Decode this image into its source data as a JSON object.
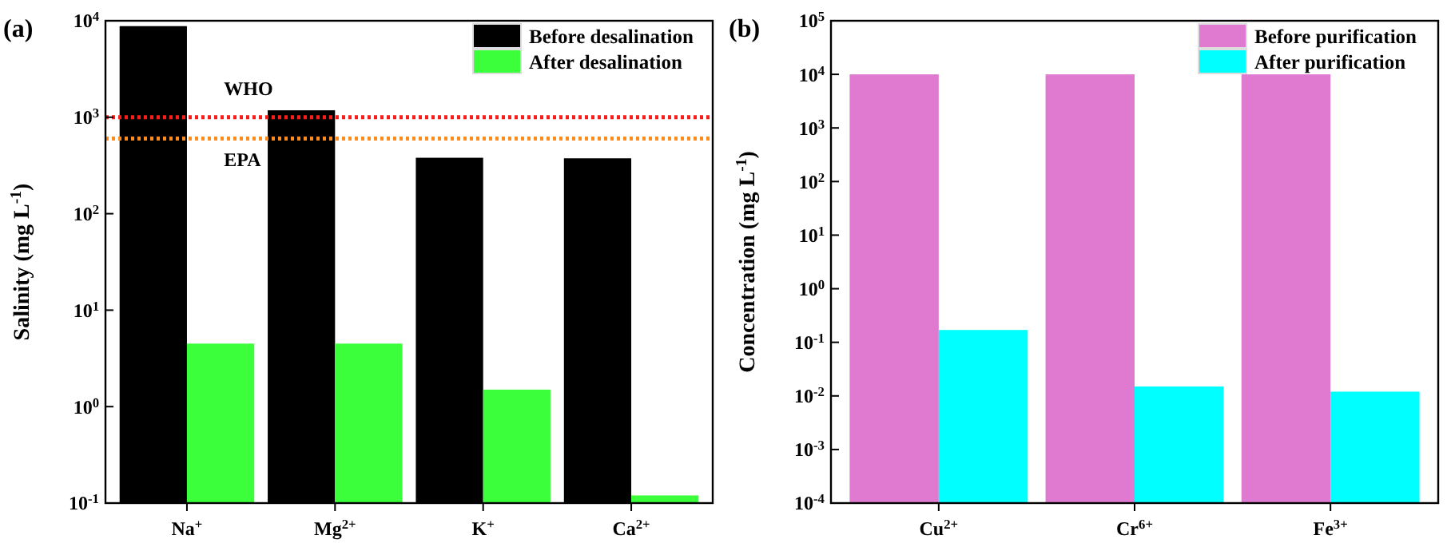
{
  "chart_data": [
    {
      "type": "bar",
      "annotations": [
        "(a)"
      ],
      "ylabel": "Salinity (mg L$^{-1}$)",
      "categories": [
        "Na$^{+}$",
        "Mg$^{2+}$",
        "K$^{+}$",
        "Ca$^{2+}$"
      ],
      "log": true,
      "ylim": [
        0.1,
        10000
      ],
      "yticks": [
        {
          "value": 0.1,
          "label": "10$^{-1}$"
        },
        {
          "value": 1,
          "label": "10$^{0}$"
        },
        {
          "value": 10,
          "label": "10$^{1}$"
        },
        {
          "value": 100,
          "label": "10$^{2}$"
        },
        {
          "value": 1000,
          "label": "10$^{3}$"
        },
        {
          "value": 10000,
          "label": "10$^{4}$"
        }
      ],
      "legend": "top right",
      "series": [
        {
          "name": "Before desalination",
          "color": "#000000",
          "values": [
            8800,
            1180,
            380,
            375
          ]
        },
        {
          "name": "After desalination",
          "color": "#3cff3c",
          "values": [
            4.5,
            4.5,
            1.5,
            0.12
          ]
        }
      ],
      "ref_lines": [
        {
          "axis": "y",
          "value": 1000,
          "label": "WHO",
          "color": "#ff1a1a",
          "line_style": "dotted"
        },
        {
          "axis": "y",
          "value": 600,
          "label": "EPA",
          "color": "#ff8c1a",
          "line_style": "dotted"
        }
      ]
    },
    {
      "type": "bar",
      "annotations": [
        "(b)"
      ],
      "ylabel": "Concentration (mg L$^{-1}$)",
      "categories": [
        "Cu$^{2+}$",
        "Cr$^{6+}$",
        "Fe$^{3+}$"
      ],
      "log": true,
      "ylim": [
        0.0001,
        100000
      ],
      "yticks": [
        {
          "value": 0.0001,
          "label": "10$^{-4}$"
        },
        {
          "value": 0.001,
          "label": "10$^{-3}$"
        },
        {
          "value": 0.01,
          "label": "10$^{-2}$"
        },
        {
          "value": 0.1,
          "label": "10$^{-1}$"
        },
        {
          "value": 1,
          "label": "10$^{0}$"
        },
        {
          "value": 10,
          "label": "10$^{1}$"
        },
        {
          "value": 100,
          "label": "10$^{2}$"
        },
        {
          "value": 1000,
          "label": "10$^{3}$"
        },
        {
          "value": 10000,
          "label": "10$^{4}$"
        },
        {
          "value": 100000,
          "label": "10$^{5}$"
        }
      ],
      "legend": "top right",
      "series": [
        {
          "name": "Before purification",
          "color": "#e07ad0",
          "values": [
            10000,
            10000,
            10000
          ]
        },
        {
          "name": "After purification",
          "color": "#00ffff",
          "values": [
            0.17,
            0.015,
            0.012
          ]
        }
      ]
    }
  ]
}
